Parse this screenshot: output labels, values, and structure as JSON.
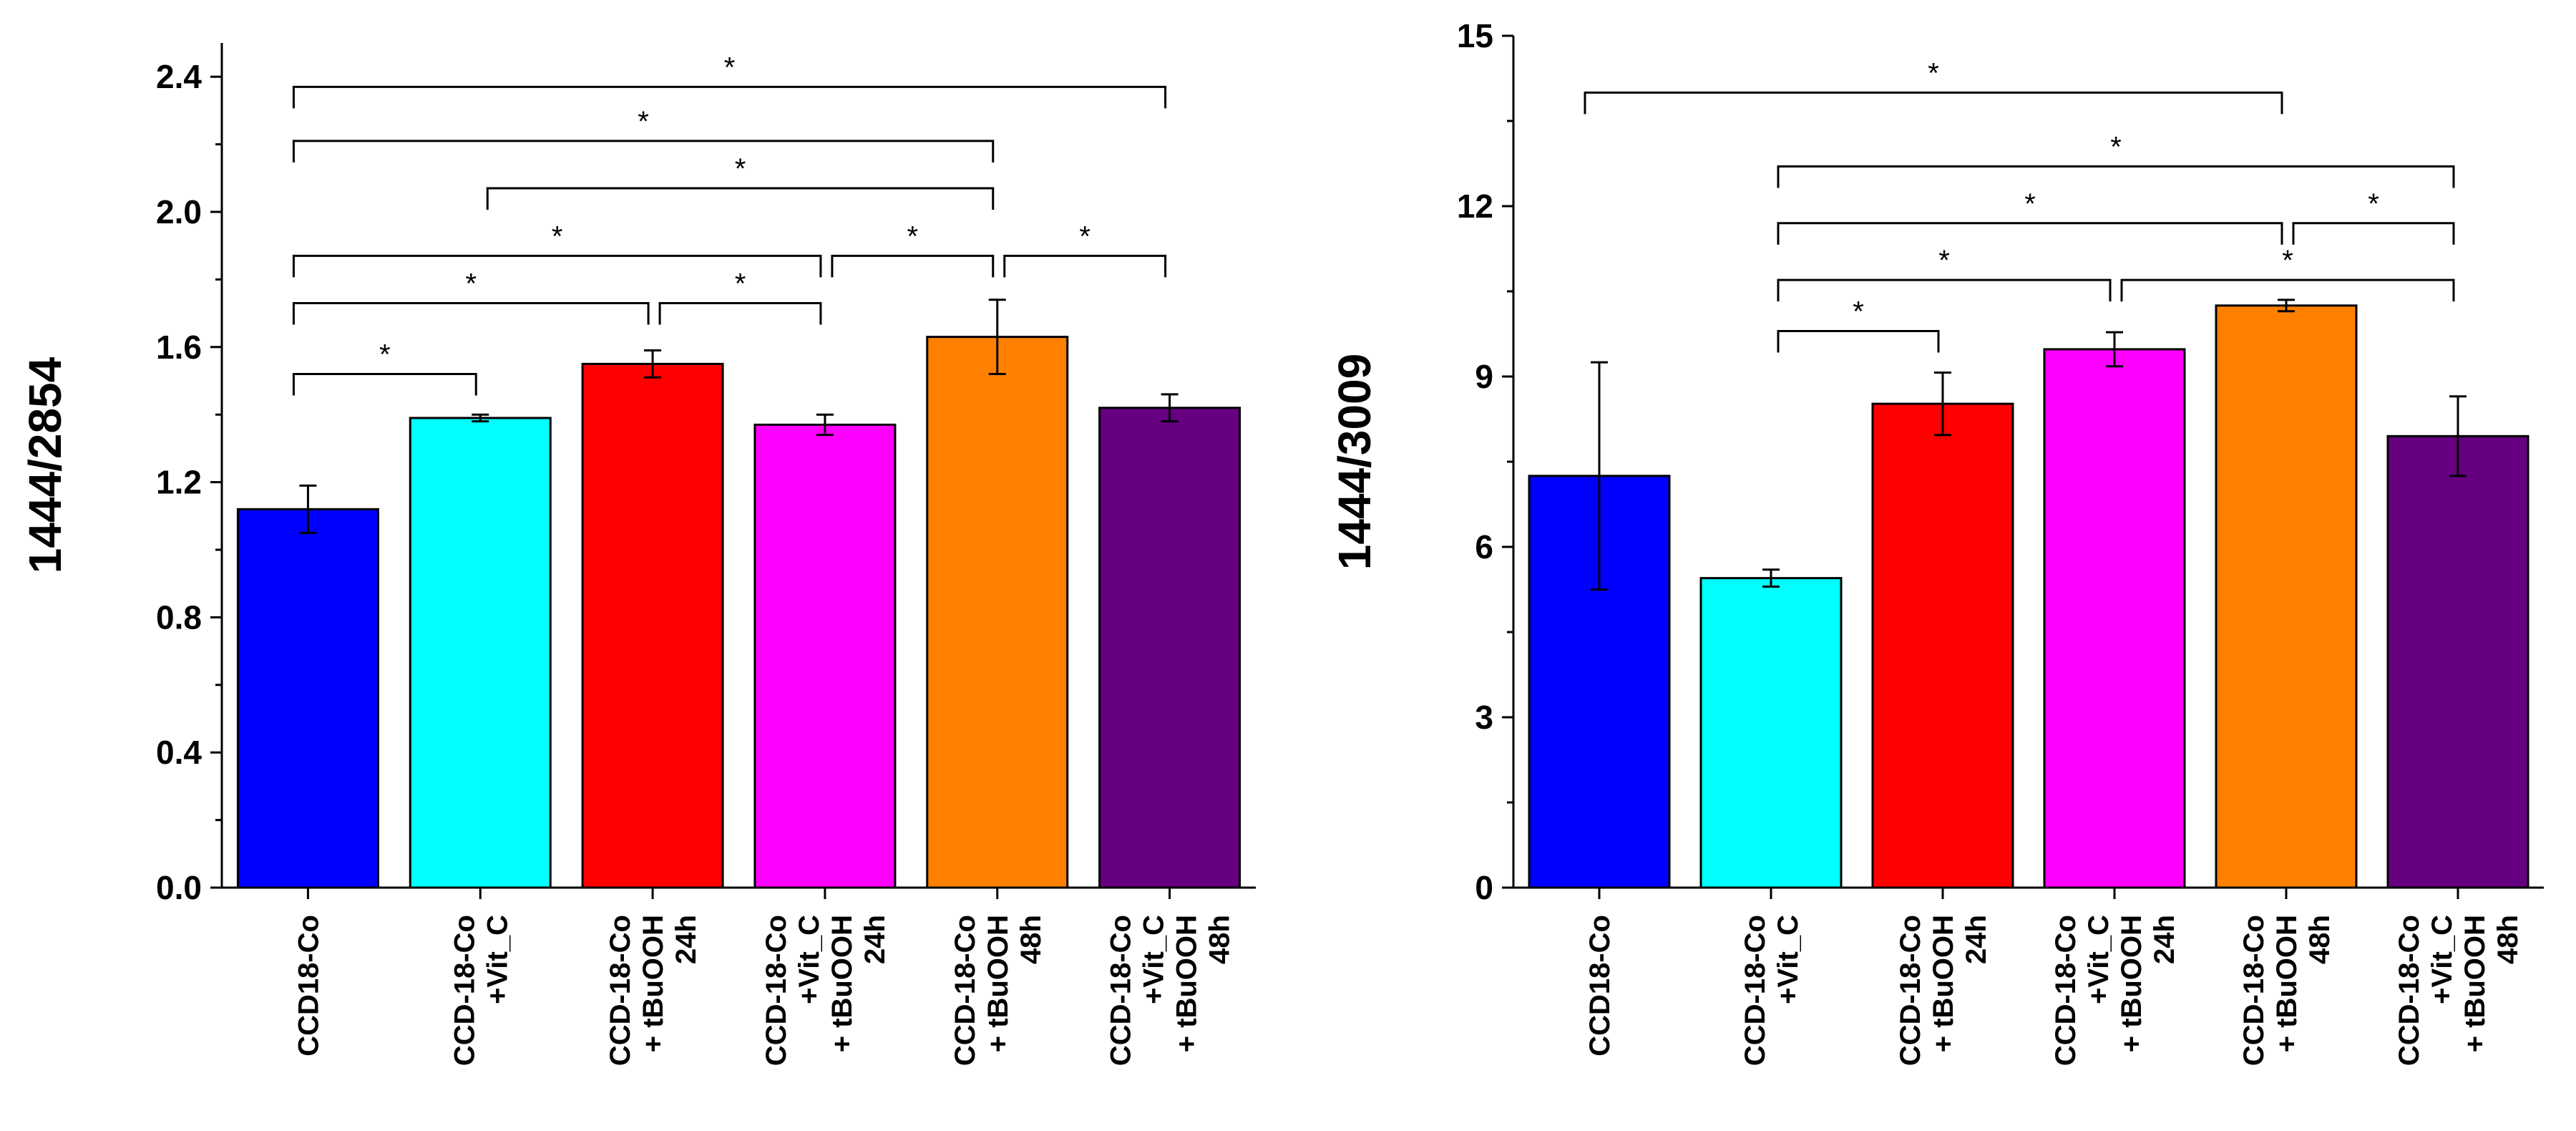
{
  "chart_data": [
    {
      "type": "bar",
      "ylabel": "1444/2854",
      "ylim": [
        0,
        2.5
      ],
      "yticks": [
        "0.0",
        "0.4",
        "0.8",
        "1.2",
        "1.6",
        "2.0",
        "2.4"
      ],
      "categories": [
        [
          "CCD18-Co"
        ],
        [
          "CCD-18-Co",
          "+Vit_C"
        ],
        [
          "CCD-18-Co",
          "+ tBuOOH",
          "24h"
        ],
        [
          "CCD-18-Co",
          "+Vit_C",
          "+ tBuOOH",
          "24h"
        ],
        [
          "CCD-18-Co",
          "+ tBuOOH",
          "48h"
        ],
        [
          "CCD-18-Co",
          "+Vit_C",
          "+ tBuOOH",
          "48h"
        ]
      ],
      "values": [
        1.12,
        1.39,
        1.55,
        1.37,
        1.63,
        1.42
      ],
      "errors": [
        0.07,
        0.01,
        0.04,
        0.03,
        0.11,
        0.04
      ],
      "colors": [
        "#0000ff",
        "#00ffff",
        "#ff0000",
        "#ff00ff",
        "#ff8000",
        "#660080"
      ],
      "significance": [
        {
          "from": 0,
          "to": 5,
          "y": 2.37,
          "label": "*"
        },
        {
          "from": 0,
          "to": 4,
          "y": 2.21,
          "label": "*"
        },
        {
          "from": 1,
          "to": 4,
          "y": 2.07,
          "label": "*"
        },
        {
          "from": 0,
          "to": 3,
          "y": 1.87,
          "label": "*"
        },
        {
          "from": 3,
          "to": 4,
          "y": 1.87,
          "label": "*"
        },
        {
          "from": 4,
          "to": 5,
          "y": 1.87,
          "label": "*"
        },
        {
          "from": 0,
          "to": 2,
          "y": 1.73,
          "label": "*"
        },
        {
          "from": 2,
          "to": 3,
          "y": 1.73,
          "label": "*"
        },
        {
          "from": 0,
          "to": 1,
          "y": 1.52,
          "label": "*"
        }
      ]
    },
    {
      "type": "bar",
      "ylabel": "1444/3009",
      "ylim": [
        0,
        15
      ],
      "yticks": [
        "0",
        "3",
        "6",
        "9",
        "12",
        "15"
      ],
      "categories": [
        [
          "CCD18-Co"
        ],
        [
          "CCD-18-Co",
          "+Vit_C"
        ],
        [
          "CCD-18-Co",
          "+ tBuOOH",
          "24h"
        ],
        [
          "CCD-18-Co",
          "+Vit_C",
          "+ tBuOOH",
          "24h"
        ],
        [
          "CCD-18-Co",
          "+ tBuOOH",
          "48h"
        ],
        [
          "CCD-18-Co",
          "+Vit_C",
          "+ tBuOOH",
          "48h"
        ]
      ],
      "values": [
        7.25,
        5.45,
        8.52,
        9.48,
        10.25,
        7.95
      ],
      "errors": [
        2.0,
        0.15,
        0.55,
        0.3,
        0.1,
        0.7
      ],
      "colors": [
        "#0000ff",
        "#00ffff",
        "#ff0000",
        "#ff00ff",
        "#ff8000",
        "#660080"
      ],
      "significance": [
        {
          "from": 0,
          "to": 4,
          "y": 14.0,
          "label": "*"
        },
        {
          "from": 1,
          "to": 5,
          "y": 12.7,
          "label": "*"
        },
        {
          "from": 1,
          "to": 4,
          "y": 11.7,
          "label": "*"
        },
        {
          "from": 4,
          "to": 5,
          "y": 11.7,
          "label": "*"
        },
        {
          "from": 1,
          "to": 3,
          "y": 10.7,
          "label": "*"
        },
        {
          "from": 3,
          "to": 5,
          "y": 10.7,
          "label": "*"
        },
        {
          "from": 1,
          "to": 2,
          "y": 9.8,
          "label": "*"
        }
      ]
    }
  ]
}
